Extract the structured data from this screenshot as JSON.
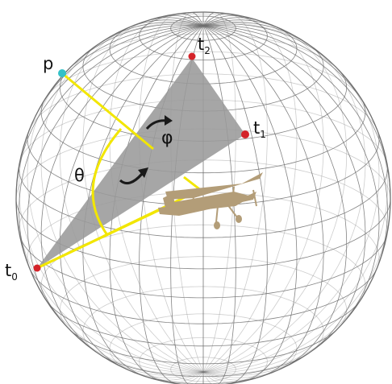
{
  "labels": {
    "p": "p",
    "t0": "t",
    "t0_sub": "0",
    "t1": "t",
    "t1_sub": "1",
    "t2": "t",
    "t2_sub": "2",
    "theta": "θ",
    "phi": "φ"
  },
  "colors": {
    "grid": "#6f6f6f",
    "triangle": "#9a9a9a",
    "yellow": "#f2e600",
    "red_point": "#d4232a",
    "cyan_point": "#33c1c8",
    "airplane": "#b39d78",
    "arrow": "#1a1a1a"
  },
  "icons": {
    "airplane": "biplane-icon"
  }
}
